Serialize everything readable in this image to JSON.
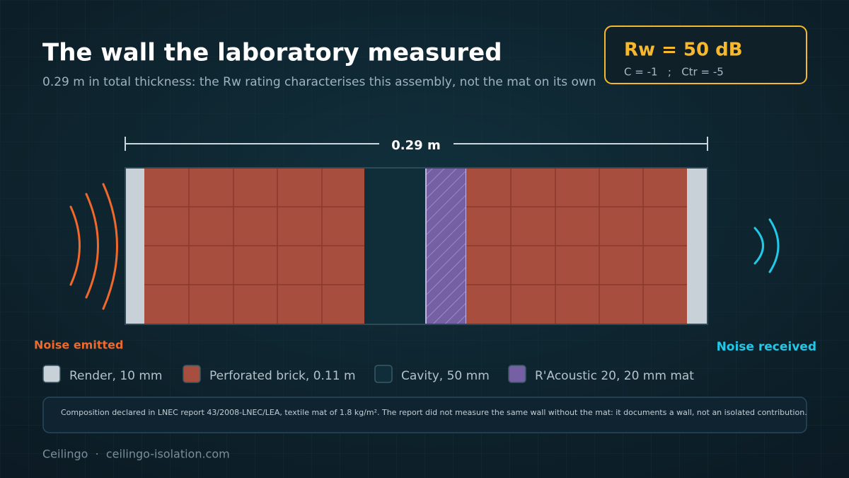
{
  "header": {
    "title": "The wall the laboratory measured",
    "subtitle": "0.29 m in total thickness: the Rw rating characterises this assembly, not the mat on its own"
  },
  "rating": {
    "main": "Rw = 50 dB",
    "detail": "C = -1   ;   Ctr = -5"
  },
  "dimension": {
    "label": "0.29 m"
  },
  "sides": {
    "emitted": "Noise emitted",
    "received": "Noise received"
  },
  "legend": [
    {
      "label": "Render, 10 mm",
      "color": "#c9d1d8"
    },
    {
      "label": "Perforated brick, 0.11 m",
      "color": "#a84e3e"
    },
    {
      "label": "Cavity, 50 mm",
      "color": "#0f2e3a"
    },
    {
      "label": "R'Acoustic 20, 20 mm mat",
      "color": "#7560a4"
    }
  ],
  "note": "Composition declared in LNEC report 43/2008-LNEC/LEA, textile mat of 1.8 kg/m². The report did not measure the same wall without the mat: it documents a wall, not an isolated contribution.",
  "footer": "Ceilingo  ·  ceilingo-isolation.com"
}
